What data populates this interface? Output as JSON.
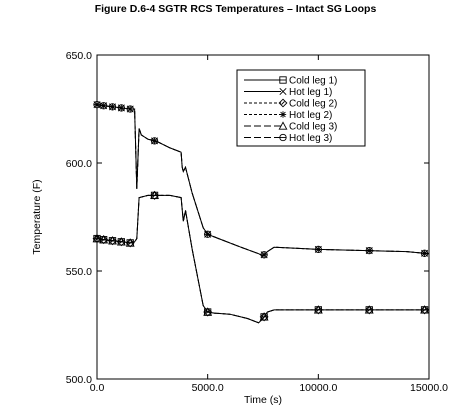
{
  "figure_title": "Figure D.6-4  SGTR RCS Temperatures – Intact SG Loops",
  "chart_data": {
    "type": "line",
    "title": "Figure D.6-4  SGTR RCS Temperatures – Intact SG Loops",
    "xlabel": "Time (s)",
    "ylabel": "Temperature (F)",
    "xlim": [
      0,
      15000
    ],
    "ylim": [
      500,
      650
    ],
    "x_ticks": [
      0,
      5000,
      10000,
      15000
    ],
    "x_tick_labels": [
      "0.0",
      "5000.0",
      "10000.0",
      "15000.0"
    ],
    "y_ticks": [
      500,
      550,
      600,
      650
    ],
    "y_tick_labels": [
      "500.0",
      "550.0",
      "600.0",
      "650.0"
    ],
    "grid": false,
    "legend_position": "top-right",
    "series": [
      {
        "name": "Cold leg 1)",
        "marker": "square-cross",
        "dash": "solid",
        "x": [
          0,
          300,
          700,
          1100,
          1500,
          1700,
          1800,
          1900,
          2300,
          2700,
          3300,
          3800,
          3900,
          4000,
          4300,
          4800,
          5000,
          5300,
          6000,
          6800,
          7300,
          7500,
          7700,
          8000,
          9000,
          10000,
          12000,
          14000,
          15000
        ],
        "y": [
          565,
          564.5,
          564,
          563.5,
          563,
          563.5,
          565,
          584,
          585,
          585,
          585,
          584,
          573,
          578,
          560,
          534,
          531,
          530.5,
          530,
          528,
          526,
          528,
          531,
          532,
          532,
          532,
          532,
          532,
          532
        ],
        "markers_at": [
          0,
          300,
          700,
          1100,
          1500,
          2600,
          5000,
          7550,
          10000,
          12300,
          14800
        ]
      },
      {
        "name": "Hot leg  1)",
        "marker": "x",
        "dash": "solid",
        "x": [
          0,
          300,
          700,
          1100,
          1500,
          1700,
          1800,
          1900,
          2000,
          2300,
          2700,
          3300,
          3800,
          3850,
          3900,
          4000,
          4300,
          4800,
          5000,
          5500,
          6500,
          7300,
          7500,
          7700,
          8000,
          9000,
          10000,
          12000,
          14000,
          15000
        ],
        "y": [
          627,
          626.5,
          626,
          625.5,
          625,
          625,
          588,
          616,
          613,
          611,
          610,
          607,
          605,
          598,
          596,
          598,
          586,
          570,
          567,
          565,
          561,
          558,
          557,
          559,
          561,
          560.5,
          560,
          559.5,
          559,
          558
        ],
        "markers_at": [
          0,
          300,
          700,
          1100,
          1500,
          2600,
          5000,
          7550,
          10000,
          12300,
          14800
        ]
      },
      {
        "name": "Cold leg 2)",
        "marker": "diamond",
        "dash": "short-dash",
        "x": [
          0,
          300,
          700,
          1100,
          1500,
          1700,
          1800,
          1900,
          2300,
          2700,
          3300,
          3800,
          3900,
          4000,
          4300,
          4800,
          5000,
          5300,
          6000,
          6800,
          7300,
          7500,
          7700,
          8000,
          9000,
          10000,
          12000,
          14000,
          15000
        ],
        "y": [
          565,
          564.5,
          564,
          563.5,
          563,
          563.5,
          565,
          584,
          585,
          585,
          585,
          584,
          573,
          578,
          560,
          534,
          531,
          530.5,
          530,
          528,
          526,
          528,
          531,
          532,
          532,
          532,
          532,
          532,
          532
        ],
        "markers_at": [
          0,
          300,
          700,
          1100,
          1500,
          2600,
          5000,
          7550,
          10000,
          12300,
          14800
        ]
      },
      {
        "name": "Hot leg  2)",
        "marker": "asterisk",
        "dash": "short-dash",
        "x": [
          0,
          300,
          700,
          1100,
          1500,
          1700,
          1800,
          1900,
          2000,
          2300,
          2700,
          3300,
          3800,
          3850,
          3900,
          4000,
          4300,
          4800,
          5000,
          5500,
          6500,
          7300,
          7500,
          7700,
          8000,
          9000,
          10000,
          12000,
          14000,
          15000
        ],
        "y": [
          627,
          626.5,
          626,
          625.5,
          625,
          625,
          588,
          616,
          613,
          611,
          610,
          607,
          605,
          598,
          596,
          598,
          586,
          570,
          567,
          565,
          561,
          558,
          557,
          559,
          561,
          560.5,
          560,
          559.5,
          559,
          558
        ],
        "markers_at": [
          0,
          300,
          700,
          1100,
          1500,
          2600,
          5000,
          7550,
          10000,
          12300,
          14800
        ]
      },
      {
        "name": "Cold leg 3)",
        "marker": "triangle",
        "dash": "long-dash",
        "x": [
          0,
          300,
          700,
          1100,
          1500,
          1700,
          1800,
          1900,
          2300,
          2700,
          3300,
          3800,
          3900,
          4000,
          4300,
          4800,
          5000,
          5300,
          6000,
          6800,
          7300,
          7500,
          7700,
          8000,
          9000,
          10000,
          12000,
          14000,
          15000
        ],
        "y": [
          565,
          564.5,
          564,
          563.5,
          563,
          563.5,
          565,
          584,
          585,
          585,
          585,
          584,
          573,
          578,
          560,
          534,
          531,
          530.5,
          530,
          528,
          526,
          528,
          531,
          532,
          532,
          532,
          532,
          532,
          532
        ],
        "markers_at": [
          0,
          300,
          700,
          1100,
          1500,
          2600,
          5000,
          7550,
          10000,
          12300,
          14800
        ]
      },
      {
        "name": "Hot leg  3)",
        "marker": "circle-minus",
        "dash": "long-dash",
        "x": [
          0,
          300,
          700,
          1100,
          1500,
          1700,
          1800,
          1900,
          2000,
          2300,
          2700,
          3300,
          3800,
          3850,
          3900,
          4000,
          4300,
          4800,
          5000,
          5500,
          6500,
          7300,
          7500,
          7700,
          8000,
          9000,
          10000,
          12000,
          14000,
          15000
        ],
        "y": [
          627,
          626.5,
          626,
          625.5,
          625,
          625,
          588,
          616,
          613,
          611,
          610,
          607,
          605,
          598,
          596,
          598,
          586,
          570,
          567,
          565,
          561,
          558,
          557,
          559,
          561,
          560.5,
          560,
          559.5,
          559,
          558
        ],
        "markers_at": [
          0,
          300,
          700,
          1100,
          1500,
          2600,
          5000,
          7550,
          10000,
          12300,
          14800
        ]
      }
    ]
  }
}
